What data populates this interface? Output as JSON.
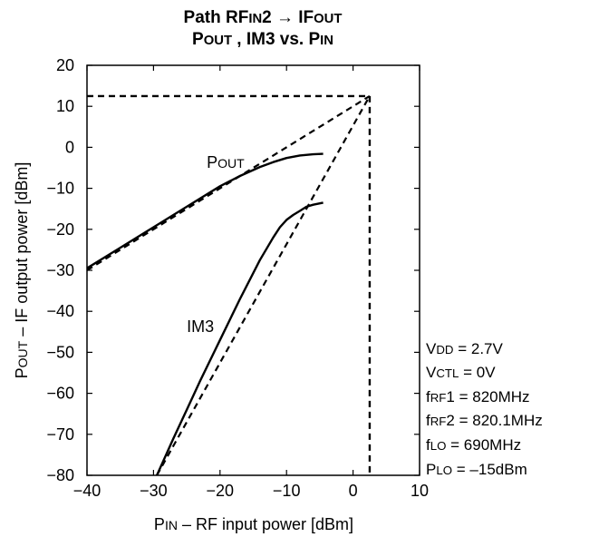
{
  "chart_data": {
    "type": "line",
    "title": {
      "line1": {
        "pre": "Path RF",
        "sub1": "IN",
        "mid": "2 → IF",
        "sub2": "OUT"
      },
      "line2": {
        "p": "P",
        "sub_out": "OUT",
        "mid": " , IM3 vs. P",
        "sub_in": "IN"
      }
    },
    "xlabel": {
      "p": "P",
      "sub": "IN",
      "rest": " – RF input power [dBm]"
    },
    "ylabel": {
      "p": "P",
      "sub": "OUT",
      "rest": " – IF output power [dBm]"
    },
    "xlim": [
      -40,
      10
    ],
    "ylim": [
      -80,
      20
    ],
    "x_ticks": [
      -40,
      -30,
      -20,
      -10,
      0,
      10
    ],
    "x_tick_labels": [
      "−40",
      "−30",
      "−20",
      "−10",
      "0",
      "10"
    ],
    "y_ticks": [
      -80,
      -70,
      -60,
      -50,
      -40,
      -30,
      -20,
      -10,
      0,
      10,
      20
    ],
    "y_tick_labels": [
      "−80",
      "−70",
      "−60",
      "−50",
      "−40",
      "−30",
      "−20",
      "−10",
      "0",
      "10",
      "20"
    ],
    "grid": false,
    "series": [
      {
        "name": "POUT",
        "label": {
          "p": "P",
          "sub": "OUT"
        },
        "label_pos": [
          -22,
          -5
        ],
        "style": "solid",
        "x": [
          -40,
          -30,
          -25,
          -20,
          -17,
          -14,
          -12,
          -10,
          -8,
          -6,
          -4.5
        ],
        "y": [
          -29.5,
          -19.5,
          -14.5,
          -9.5,
          -7,
          -4.8,
          -3.6,
          -2.6,
          -2,
          -1.7,
          -1.6
        ]
      },
      {
        "name": "IM3",
        "label": {
          "text": "IM3"
        },
        "label_pos": [
          -25,
          -45
        ],
        "style": "solid",
        "x": [
          -29.5,
          -27,
          -25,
          -23,
          -20,
          -17,
          -14,
          -12,
          -11,
          -10,
          -9,
          -8,
          -7,
          -6,
          -4.5
        ],
        "y": [
          -80,
          -71,
          -64,
          -57,
          -47,
          -37,
          -27.5,
          -22,
          -19.5,
          -17.7,
          -16.5,
          -15.5,
          -14.5,
          -14,
          -13.5
        ]
      },
      {
        "name": "POUT extrapolation",
        "style": "dashed",
        "x": [
          -40,
          2.5
        ],
        "y": [
          -30,
          12.5
        ]
      },
      {
        "name": "IM3 extrapolation",
        "style": "dashed",
        "x": [
          -29.5,
          2.5
        ],
        "y": [
          -80,
          12.5
        ]
      }
    ],
    "intercept": {
      "x": 2.5,
      "y": 12.5
    },
    "conditions": [
      {
        "sym": "V",
        "sub": "DD",
        "val": " = 2.7V"
      },
      {
        "sym": "V",
        "sub": "CTL",
        "val": " = 0V"
      },
      {
        "sym": "f",
        "sub": "RF",
        "val": "1 = 820MHz"
      },
      {
        "sym": "f",
        "sub": "RF",
        "val": "2 = 820.1MHz"
      },
      {
        "sym": "f",
        "sub": "LO",
        "val": " = 690MHz"
      },
      {
        "sym": "P",
        "sub": "LO",
        "val": " = –15dBm"
      }
    ]
  }
}
